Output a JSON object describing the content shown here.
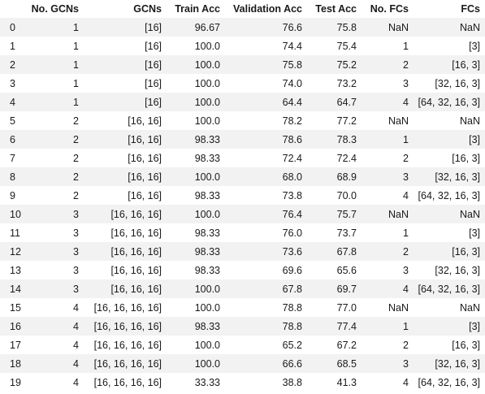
{
  "table": {
    "index_header": "",
    "columns": [
      "No. GCNs",
      "GCNs",
      "Train Acc",
      "Validation Acc",
      "Test Acc",
      "No. FCs",
      "FCs"
    ],
    "rows": [
      {
        "index": "0",
        "cells": [
          "1",
          "[16]",
          "96.67",
          "76.6",
          "75.8",
          "NaN",
          "NaN"
        ]
      },
      {
        "index": "1",
        "cells": [
          "1",
          "[16]",
          "100.0",
          "74.4",
          "75.4",
          "1",
          "[3]"
        ]
      },
      {
        "index": "2",
        "cells": [
          "1",
          "[16]",
          "100.0",
          "75.8",
          "75.2",
          "2",
          "[16, 3]"
        ]
      },
      {
        "index": "3",
        "cells": [
          "1",
          "[16]",
          "100.0",
          "74.0",
          "73.2",
          "3",
          "[32, 16, 3]"
        ]
      },
      {
        "index": "4",
        "cells": [
          "1",
          "[16]",
          "100.0",
          "64.4",
          "64.7",
          "4",
          "[64, 32, 16, 3]"
        ]
      },
      {
        "index": "5",
        "cells": [
          "2",
          "[16, 16]",
          "100.0",
          "78.2",
          "77.2",
          "NaN",
          "NaN"
        ]
      },
      {
        "index": "6",
        "cells": [
          "2",
          "[16, 16]",
          "98.33",
          "78.6",
          "78.3",
          "1",
          "[3]"
        ]
      },
      {
        "index": "7",
        "cells": [
          "2",
          "[16, 16]",
          "98.33",
          "72.4",
          "72.4",
          "2",
          "[16, 3]"
        ]
      },
      {
        "index": "8",
        "cells": [
          "2",
          "[16, 16]",
          "100.0",
          "68.0",
          "68.9",
          "3",
          "[32, 16, 3]"
        ]
      },
      {
        "index": "9",
        "cells": [
          "2",
          "[16, 16]",
          "98.33",
          "73.8",
          "70.0",
          "4",
          "[64, 32, 16, 3]"
        ]
      },
      {
        "index": "10",
        "cells": [
          "3",
          "[16, 16, 16]",
          "100.0",
          "76.4",
          "75.7",
          "NaN",
          "NaN"
        ]
      },
      {
        "index": "11",
        "cells": [
          "3",
          "[16, 16, 16]",
          "98.33",
          "76.0",
          "73.7",
          "1",
          "[3]"
        ]
      },
      {
        "index": "12",
        "cells": [
          "3",
          "[16, 16, 16]",
          "98.33",
          "73.6",
          "67.8",
          "2",
          "[16, 3]"
        ]
      },
      {
        "index": "13",
        "cells": [
          "3",
          "[16, 16, 16]",
          "98.33",
          "69.6",
          "65.6",
          "3",
          "[32, 16, 3]"
        ]
      },
      {
        "index": "14",
        "cells": [
          "3",
          "[16, 16, 16]",
          "100.0",
          "67.8",
          "69.7",
          "4",
          "[64, 32, 16, 3]"
        ]
      },
      {
        "index": "15",
        "cells": [
          "4",
          "[16, 16, 16, 16]",
          "100.0",
          "78.8",
          "77.0",
          "NaN",
          "NaN"
        ]
      },
      {
        "index": "16",
        "cells": [
          "4",
          "[16, 16, 16, 16]",
          "98.33",
          "78.8",
          "77.4",
          "1",
          "[3]"
        ]
      },
      {
        "index": "17",
        "cells": [
          "4",
          "[16, 16, 16, 16]",
          "100.0",
          "65.2",
          "67.2",
          "2",
          "[16, 3]"
        ]
      },
      {
        "index": "18",
        "cells": [
          "4",
          "[16, 16, 16, 16]",
          "100.0",
          "66.6",
          "68.5",
          "3",
          "[32, 16, 3]"
        ]
      },
      {
        "index": "19",
        "cells": [
          "4",
          "[16, 16, 16, 16]",
          "33.33",
          "38.8",
          "41.3",
          "4",
          "[64, 32, 16, 3]"
        ]
      }
    ]
  },
  "colors": {
    "stripe": "#f2f2f2",
    "background": "#ffffff",
    "text": "#1a1a1a"
  }
}
